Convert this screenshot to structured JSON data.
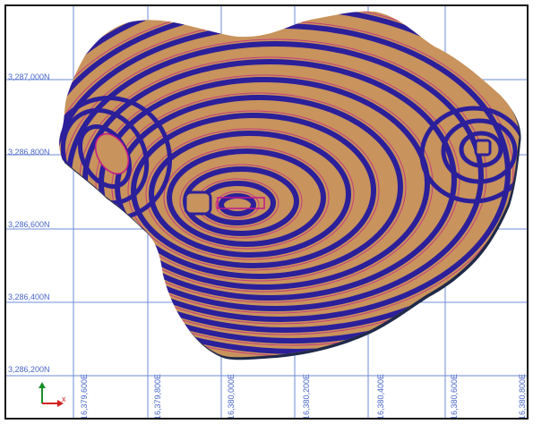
{
  "map": {
    "northing_labels": [
      "3,287,000N",
      "3,286,800N",
      "3,286,600N",
      "3,286,400N",
      "3,286,200N"
    ],
    "easting_labels": [
      "16,379,600E",
      "16,379,800E",
      "16,380,000E",
      "16,380,200E",
      "16,380,400E",
      "16,380,600E",
      "16,380,800E"
    ],
    "colors": {
      "grid": "#6d8bd8",
      "surface_fill": "#c8935c",
      "surface_shadow": "#1f2a4a",
      "contour_major": "#2b1f9a",
      "contour_minor": "#c2178f",
      "label_text": "#4a66c8"
    }
  },
  "axis_indicator": {
    "x_label": "x",
    "x_color": "#d22222",
    "y_color": "#1a8f2a"
  }
}
